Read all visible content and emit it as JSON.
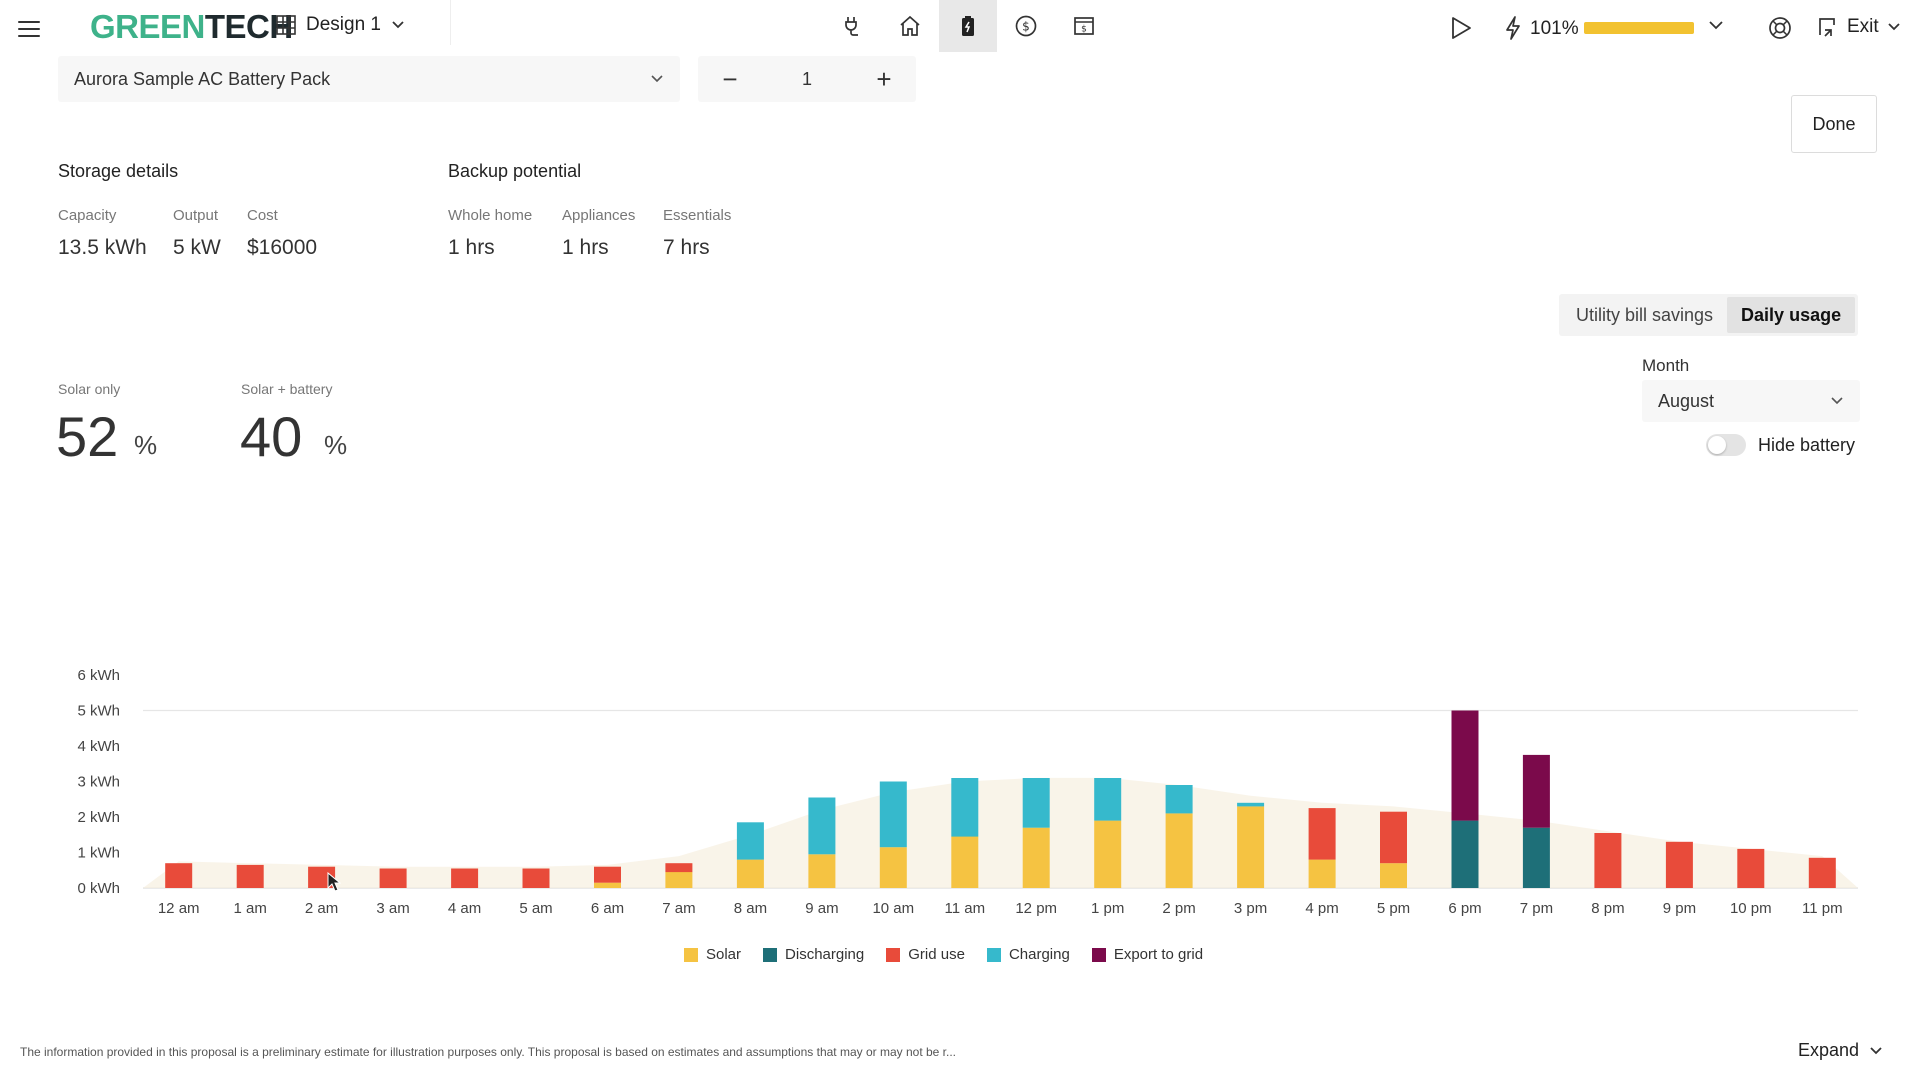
{
  "header": {
    "logo_part1": "GREEN",
    "logo_part2": "TECH",
    "design_label": "Design 1",
    "nav_icons": [
      "plug-icon",
      "home-icon",
      "battery-icon",
      "dollar-icon",
      "proposal-icon"
    ],
    "active_nav": "battery-icon",
    "performance_pct": "101%",
    "performance_fraction": 1.0,
    "exit_label": "Exit"
  },
  "battery": {
    "product_name": "Aurora Sample AC Battery Pack",
    "quantity": "1",
    "decrement_symbol": "−",
    "increment_symbol": "+"
  },
  "done_label": "Done",
  "storage": {
    "title": "Storage details",
    "capacity_label": "Capacity",
    "capacity_value": "13.5 kWh",
    "output_label": "Output",
    "output_value": "5 kW",
    "cost_label": "Cost",
    "cost_value": "$16000"
  },
  "backup": {
    "title": "Backup potential",
    "whole_home_label": "Whole home",
    "whole_home_value": "1 hrs",
    "appliances_label": "Appliances",
    "appliances_value": "1 hrs",
    "essentials_label": "Essentials",
    "essentials_value": "7 hrs"
  },
  "view_tabs": {
    "utility_label": "Utility bill savings",
    "daily_label": "Daily usage",
    "active": "daily"
  },
  "month": {
    "label": "Month",
    "value": "August"
  },
  "hide_battery": {
    "label": "Hide battery",
    "on": false
  },
  "offset": {
    "solar_only_label": "Solar only",
    "solar_only_value": "52",
    "solar_battery_label": "Solar + battery",
    "solar_battery_value": "40",
    "unit": "%"
  },
  "chart_data": {
    "type": "bar",
    "stacked": true,
    "categories": [
      "12 am",
      "1 am",
      "2 am",
      "3 am",
      "4 am",
      "5 am",
      "6 am",
      "7 am",
      "8 am",
      "9 am",
      "10 am",
      "11 am",
      "12 pm",
      "1 pm",
      "2 pm",
      "3 pm",
      "4 pm",
      "5 pm",
      "6 pm",
      "7 pm",
      "8 pm",
      "9 pm",
      "10 pm",
      "11 pm"
    ],
    "y_ticks": [
      "0 kWh",
      "1 kWh",
      "2 kWh",
      "3 kWh",
      "4 kWh",
      "5 kWh",
      "6 kWh"
    ],
    "ylim": [
      0,
      6
    ],
    "legend_position": "bottom",
    "series": [
      {
        "name": "Solar",
        "color": "#f5c342",
        "values": [
          0,
          0,
          0,
          0,
          0,
          0,
          0.15,
          0.45,
          0.8,
          0.95,
          1.15,
          1.45,
          1.7,
          1.9,
          2.1,
          2.3,
          0.8,
          0.7,
          0,
          0,
          0,
          0,
          0,
          0
        ]
      },
      {
        "name": "Discharging",
        "color": "#1e6f78",
        "values": [
          0,
          0,
          0,
          0,
          0,
          0,
          0,
          0,
          0,
          0,
          0,
          0,
          0,
          0,
          0,
          0,
          0,
          0,
          1.9,
          1.7,
          0,
          0,
          0,
          0
        ]
      },
      {
        "name": "Grid use",
        "color": "#e84b3a",
        "values": [
          0.7,
          0.65,
          0.6,
          0.55,
          0.55,
          0.55,
          0.45,
          0.25,
          0,
          0,
          0,
          0,
          0,
          0,
          0,
          0,
          1.45,
          1.45,
          0,
          0,
          1.55,
          1.3,
          1.1,
          0.85
        ]
      },
      {
        "name": "Charging",
        "color": "#36b9cc",
        "values": [
          0,
          0,
          0,
          0,
          0,
          0,
          0,
          0,
          1.05,
          1.6,
          1.85,
          1.65,
          1.4,
          1.2,
          0.8,
          0.1,
          0,
          0,
          0,
          0,
          0,
          0,
          0,
          0
        ]
      },
      {
        "name": "Export to grid",
        "color": "#7b0a4b",
        "values": [
          0,
          0,
          0,
          0,
          0,
          0,
          0,
          0,
          0,
          0,
          0,
          0,
          0,
          0,
          0,
          0,
          0,
          0,
          3.1,
          2.05,
          0,
          0,
          0,
          0
        ]
      }
    ],
    "consumption_curve": [
      0.75,
      0.7,
      0.65,
      0.6,
      0.6,
      0.6,
      0.65,
      0.9,
      1.5,
      2.2,
      2.7,
      3.0,
      3.1,
      3.1,
      2.9,
      2.6,
      2.4,
      2.3,
      2.1,
      1.9,
      1.6,
      1.3,
      1.1,
      0.9
    ]
  },
  "footer": {
    "disclaimer": "The information provided in this proposal is a preliminary estimate for illustration purposes only. This proposal is based on estimates and assumptions that may or may not be r...",
    "expand_label": "Expand"
  }
}
